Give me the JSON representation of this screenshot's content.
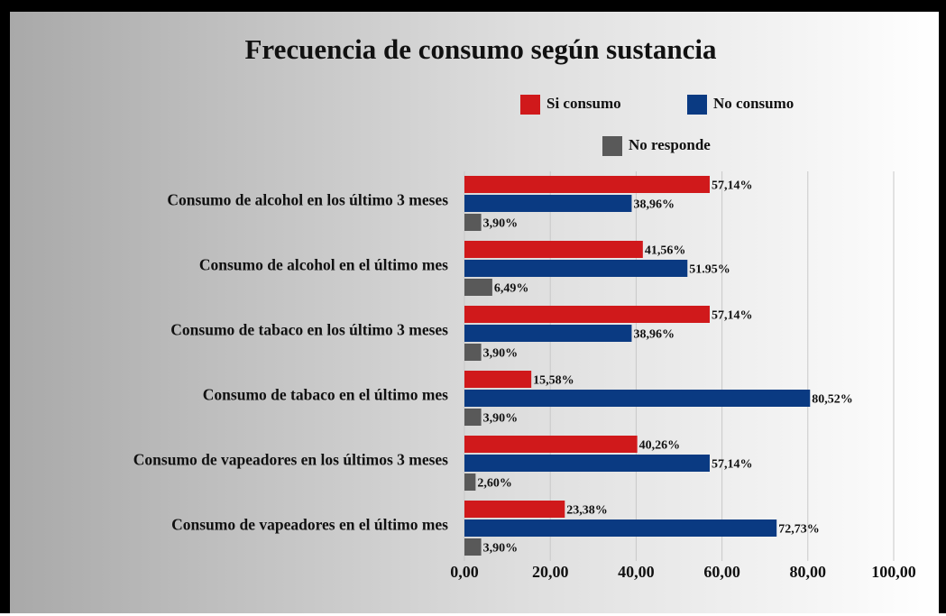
{
  "chart_data": {
    "type": "hbar",
    "title": "Frecuencia de consumo según sustancia",
    "categories": [
      "Consumo de alcohol en los último 3 meses",
      "Consumo de alcohol en el último mes",
      "Consumo de tabaco en los último 3 meses",
      "Consumo de tabaco en el último mes",
      "Consumo de vapeadores en los últimos 3 meses",
      "Consumo de vapeadores en el último mes"
    ],
    "series": [
      {
        "name": "Si consumo",
        "color": "#d0191b",
        "values": [
          57.14,
          41.56,
          57.14,
          15.58,
          40.26,
          23.38
        ],
        "value_labels": [
          "57,14%",
          "41,56%",
          "57,14%",
          "15,58%",
          "40,26%",
          "23,38%"
        ]
      },
      {
        "name": "No consumo",
        "color": "#0a3a82",
        "values": [
          38.96,
          51.95,
          38.96,
          80.52,
          57.14,
          72.73
        ],
        "value_labels": [
          "38,96%",
          "51.95%",
          "38,96%",
          "80,52%",
          "57,14%",
          "72,73%"
        ]
      },
      {
        "name": "No responde",
        "color": "#595959",
        "values": [
          3.9,
          6.49,
          3.9,
          3.9,
          2.6,
          3.9
        ],
        "value_labels": [
          "3,90%",
          "6,49%",
          "3,90%",
          "3,90%",
          "2,60%",
          "3,90%"
        ]
      }
    ],
    "xlim": [
      0,
      100
    ],
    "xticks": [
      {
        "value": 0,
        "label": "0,00"
      },
      {
        "value": 20,
        "label": "20,00"
      },
      {
        "value": 40,
        "label": "40,00"
      },
      {
        "value": 60,
        "label": "60,00"
      },
      {
        "value": 80,
        "label": "80,00"
      },
      {
        "value": 100,
        "label": "100,00"
      }
    ],
    "grid": true,
    "legend": "top"
  }
}
